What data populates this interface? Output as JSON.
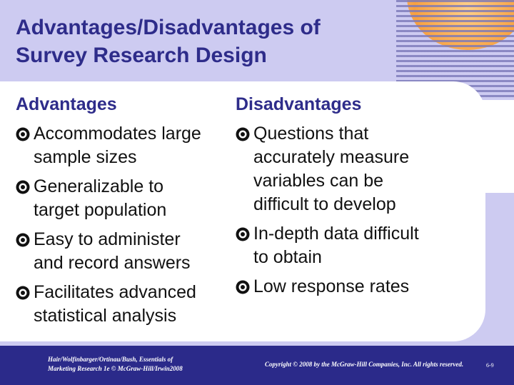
{
  "header": {
    "title": [
      "Advantages/Disadvantages of",
      "Survey Research Design"
    ]
  },
  "columns": [
    {
      "heading": "Advantages",
      "items": [
        {
          "lines": [
            "Accommodates large",
            "sample sizes"
          ]
        },
        {
          "lines": [
            "Generalizable to",
            "target population"
          ]
        },
        {
          "lines": [
            "Easy to administer",
            "and record answers"
          ]
        },
        {
          "lines": [
            "Facilitates advanced",
            "statistical analysis"
          ]
        }
      ]
    },
    {
      "heading": "Disadvantages",
      "items": [
        {
          "lines": [
            "Questions that",
            "accurately measure",
            "variables can be",
            "difficult to develop"
          ]
        },
        {
          "lines": [
            "In-depth data difficult",
            "to obtain"
          ]
        },
        {
          "lines": [
            "Low response rates"
          ]
        }
      ]
    }
  ],
  "footer": {
    "left": [
      "Hair/Wolfinbarger/Ortinau/Bush, Essentials of",
      "Marketing Research 1e © McGraw-Hill/Irwin2008"
    ],
    "right": "Copyright © 2008 by the McGraw-Hill Companies, Inc. All rights reserved.",
    "page": "6-9"
  }
}
